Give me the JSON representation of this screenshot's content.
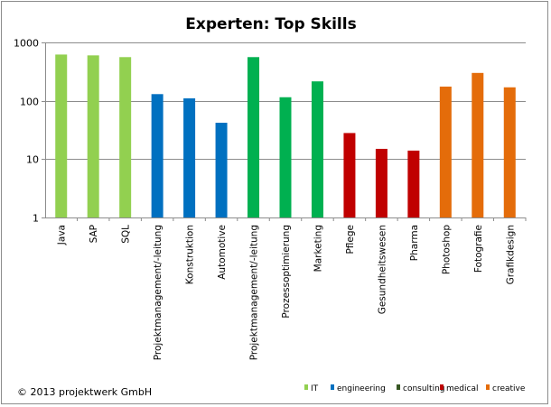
{
  "chart_data": {
    "type": "bar",
    "title": "Experten: Top Skills",
    "y_scale": "log",
    "ylim": [
      1,
      1000
    ],
    "y_ticks": [
      1,
      10,
      100,
      1000
    ],
    "grid": true,
    "legend_placement": "bottom-right",
    "categories": [
      "Java",
      "SAP",
      "SQL",
      "Projektmanagement/-leitung",
      "Konstruktion",
      "Automotive",
      "Projektmanagement/-leitung",
      "Prozessoptimierung",
      "Marketing",
      "Pflege",
      "Gesundheitswesen",
      "Pharma",
      "Photoshop",
      "Fotografie",
      "Grafikdesign"
    ],
    "values": [
      620,
      600,
      560,
      130,
      110,
      42,
      560,
      115,
      215,
      28,
      15,
      14,
      175,
      300,
      170
    ],
    "groups": [
      "IT",
      "IT",
      "IT",
      "engineering",
      "engineering",
      "engineering",
      "consulting",
      "consulting",
      "consulting",
      "medical",
      "medical",
      "medical",
      "creative",
      "creative",
      "creative"
    ],
    "series": [
      {
        "name": "IT",
        "color": "#92d050"
      },
      {
        "name": "engineering",
        "color": "#0070c0"
      },
      {
        "name": "consulting",
        "color": "#00b050"
      },
      {
        "name": "medical",
        "color": "#c00000"
      },
      {
        "name": "creative",
        "color": "#e46c0a"
      }
    ]
  },
  "legend_marker_colors": [
    "#92d050",
    "#0070c0",
    "#375623",
    "#c00000",
    "#e46c0a"
  ],
  "footer": {
    "copyright": "© 2013 projektwerk GmbH"
  }
}
